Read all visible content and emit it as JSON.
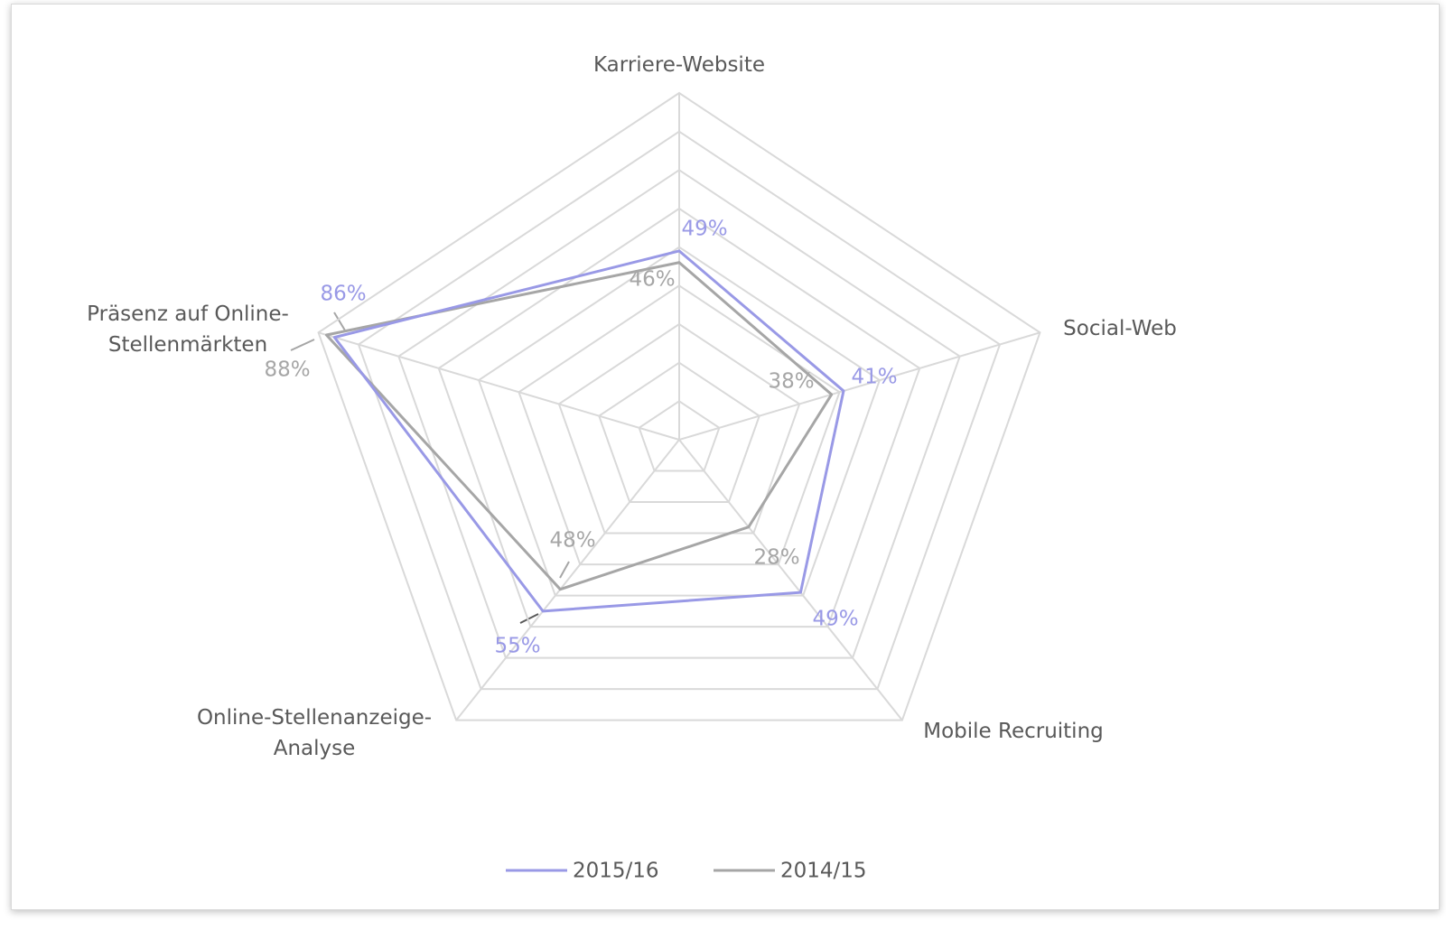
{
  "chart_data": {
    "type": "radar",
    "categories": [
      "Karriere-Website",
      "Social-Web",
      "Mobile Recruiting",
      "Online-Stellenanzeige-\nAnalyse",
      "Präsenz auf Online-\nStellenmärkten"
    ],
    "series": [
      {
        "name": "2015/16",
        "color": "#9999e6",
        "values": [
          49,
          41,
          49,
          55,
          86
        ],
        "value_labels": [
          "49%",
          "41%",
          "49%",
          "55%",
          "86%"
        ]
      },
      {
        "name": "2014/15",
        "color": "#a6a6a6",
        "values": [
          46,
          38,
          28,
          48,
          88
        ],
        "value_labels": [
          "46%",
          "38%",
          "28%",
          "48%",
          "88%"
        ]
      }
    ],
    "ylim": [
      0,
      90
    ],
    "yticks": [
      0,
      10,
      20,
      30,
      40,
      50,
      60,
      70,
      80,
      90
    ],
    "grid": true,
    "legend": "bottom"
  }
}
